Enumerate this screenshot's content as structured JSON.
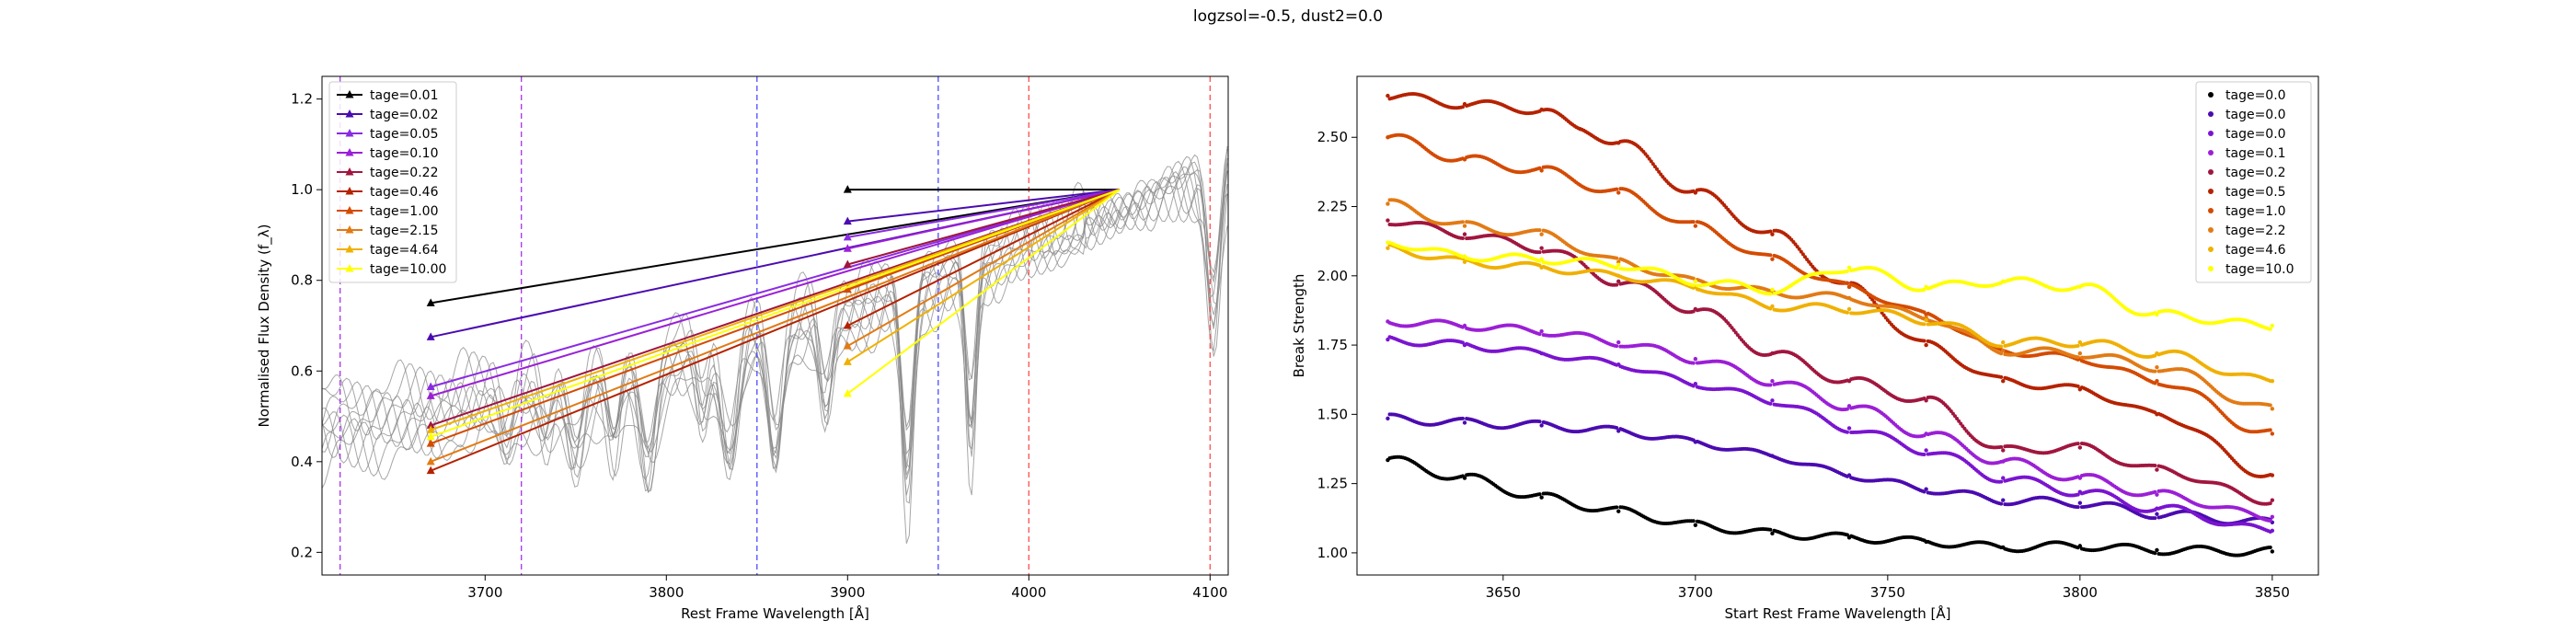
{
  "suptitle": "logzsol=-0.5, dust2=0.0",
  "chart_data": [
    {
      "type": "line",
      "xlabel": "Rest Frame Wavelength [Å]",
      "ylabel": "Normalised Flux Density (f_λ)",
      "xlim": [
        3610,
        4110
      ],
      "ylim": [
        0.15,
        1.25
      ],
      "xticks": [
        3700,
        3800,
        3900,
        4000,
        4100
      ],
      "yticks": [
        0.2,
        0.4,
        0.6,
        0.8,
        1.0,
        1.2
      ],
      "legend": "top-left",
      "grid": false,
      "vlines": [
        {
          "x": 3620,
          "color": "#a633ee"
        },
        {
          "x": 3720,
          "color": "#a633ee"
        },
        {
          "x": 3850,
          "color": "#4d4dff"
        },
        {
          "x": 3950,
          "color": "#4d4dff"
        },
        {
          "x": 4000,
          "color": "#ff4d4d"
        },
        {
          "x": 4100,
          "color": "#ff4d4d"
        }
      ],
      "anchor": {
        "x": 4050,
        "y": 1.0
      },
      "series": [
        {
          "name": "tage=0.01",
          "color": "#000000",
          "marker_x": [
            3670,
            3900
          ],
          "marker_y": [
            0.75,
            1.0
          ]
        },
        {
          "name": "tage=0.02",
          "color": "#4b0bb0",
          "marker_x": [
            3670,
            3900
          ],
          "marker_y": [
            0.675,
            0.93
          ]
        },
        {
          "name": "tage=0.05",
          "color": "#8a2be2",
          "marker_x": [
            3670,
            3900
          ],
          "marker_y": [
            0.565,
            0.895
          ]
        },
        {
          "name": "tage=0.10",
          "color": "#9b1fd6",
          "marker_x": [
            3670,
            3900
          ],
          "marker_y": [
            0.545,
            0.87
          ]
        },
        {
          "name": "tage=0.22",
          "color": "#a0163f",
          "marker_x": [
            3670,
            3900
          ],
          "marker_y": [
            0.48,
            0.835
          ]
        },
        {
          "name": "tage=0.46",
          "color": "#b52200",
          "marker_x": [
            3670,
            3900
          ],
          "marker_y": [
            0.38,
            0.7
          ]
        },
        {
          "name": "tage=1.00",
          "color": "#d44a00",
          "marker_x": [
            3670,
            3900
          ],
          "marker_y": [
            0.44,
            0.78
          ]
        },
        {
          "name": "tage=2.15",
          "color": "#e27a14",
          "marker_x": [
            3670,
            3900
          ],
          "marker_y": [
            0.4,
            0.655
          ]
        },
        {
          "name": "tage=4.64",
          "color": "#f0b000",
          "marker_x": [
            3670,
            3900
          ],
          "marker_y": [
            0.47,
            0.62
          ]
        },
        {
          "name": "tage=10.00",
          "color": "#ffff00",
          "marker_x": [
            3670,
            3900
          ],
          "marker_y": [
            0.455,
            0.55
          ]
        }
      ]
    },
    {
      "type": "scatter",
      "xlabel": "Start Rest Frame Wavelength [Å]",
      "ylabel": "Break Strength",
      "xlim": [
        3612,
        3862
      ],
      "ylim": [
        0.92,
        2.72
      ],
      "xticks": [
        3650,
        3700,
        3750,
        3800,
        3850
      ],
      "yticks": [
        1.0,
        1.25,
        1.5,
        1.75,
        2.0,
        2.25,
        2.5
      ],
      "ytick_labels": [
        "1.00",
        "1.25",
        "1.50",
        "1.75",
        "2.00",
        "2.25",
        "2.50"
      ],
      "legend": "top-right",
      "grid": false,
      "series": [
        {
          "name": "tage=0.0",
          "color": "#000000",
          "x": [
            3620,
            3640,
            3660,
            3680,
            3700,
            3720,
            3740,
            3760,
            3780,
            3800,
            3820,
            3850
          ],
          "y": [
            1.335,
            1.27,
            1.2,
            1.15,
            1.1,
            1.07,
            1.055,
            1.04,
            1.02,
            1.025,
            1.01,
            1.005
          ]
        },
        {
          "name": "tage=0.0",
          "color": "#4b0bb0",
          "x": [
            3620,
            3640,
            3660,
            3680,
            3700,
            3720,
            3740,
            3760,
            3780,
            3800,
            3820,
            3850
          ],
          "y": [
            1.485,
            1.47,
            1.46,
            1.44,
            1.4,
            1.35,
            1.28,
            1.23,
            1.19,
            1.18,
            1.14,
            1.11
          ]
        },
        {
          "name": "tage=0.0",
          "color": "#7a14d0",
          "x": [
            3620,
            3640,
            3660,
            3680,
            3700,
            3720,
            3740,
            3760,
            3780,
            3800,
            3820,
            3850
          ],
          "y": [
            1.77,
            1.75,
            1.72,
            1.68,
            1.61,
            1.55,
            1.45,
            1.37,
            1.27,
            1.22,
            1.16,
            1.08
          ]
        },
        {
          "name": "tage=0.1",
          "color": "#9b1fd6",
          "x": [
            3620,
            3640,
            3660,
            3680,
            3700,
            3720,
            3740,
            3760,
            3780,
            3800,
            3820,
            3850
          ],
          "y": [
            1.835,
            1.82,
            1.8,
            1.76,
            1.7,
            1.62,
            1.53,
            1.43,
            1.33,
            1.27,
            1.21,
            1.13
          ]
        },
        {
          "name": "tage=0.2",
          "color": "#a0163f",
          "x": [
            3620,
            3640,
            3660,
            3680,
            3700,
            3720,
            3740,
            3760,
            3780,
            3800,
            3820,
            3850
          ],
          "y": [
            2.2,
            2.15,
            2.1,
            1.98,
            1.88,
            1.72,
            1.62,
            1.55,
            1.37,
            1.38,
            1.3,
            1.19
          ]
        },
        {
          "name": "tage=0.5",
          "color": "#b52200",
          "x": [
            3620,
            3640,
            3660,
            3670,
            3680,
            3700,
            3720,
            3740,
            3760,
            3780,
            3800,
            3820,
            3850
          ],
          "y": [
            2.65,
            2.62,
            2.6,
            2.53,
            2.48,
            2.3,
            2.15,
            1.96,
            1.75,
            1.62,
            1.59,
            1.5,
            1.28
          ]
        },
        {
          "name": "tage=1.0",
          "color": "#d44a00",
          "x": [
            3620,
            3640,
            3660,
            3680,
            3700,
            3720,
            3740,
            3760,
            3780,
            3800,
            3820,
            3850
          ],
          "y": [
            2.5,
            2.42,
            2.38,
            2.3,
            2.18,
            2.06,
            1.96,
            1.86,
            1.73,
            1.7,
            1.62,
            1.43
          ]
        },
        {
          "name": "tage=2.2",
          "color": "#e27a14",
          "x": [
            3620,
            3640,
            3660,
            3680,
            3700,
            3720,
            3740,
            3760,
            3780,
            3800,
            3820,
            3850
          ],
          "y": [
            2.26,
            2.18,
            2.15,
            2.05,
            1.98,
            1.94,
            1.92,
            1.85,
            1.73,
            1.72,
            1.67,
            1.52
          ]
        },
        {
          "name": "tage=4.6",
          "color": "#f0b000",
          "x": [
            3620,
            3640,
            3660,
            3680,
            3700,
            3720,
            3740,
            3760,
            3780,
            3800,
            3820,
            3850
          ],
          "y": [
            2.1,
            2.05,
            2.03,
            2.0,
            1.96,
            1.89,
            1.88,
            1.84,
            1.76,
            1.76,
            1.72,
            1.62
          ]
        },
        {
          "name": "tage=10.0",
          "color": "#ffff00",
          "x": [
            3620,
            3640,
            3660,
            3680,
            3700,
            3720,
            3740,
            3760,
            3780,
            3800,
            3820,
            3850
          ],
          "y": [
            2.12,
            2.07,
            2.06,
            2.04,
            1.98,
            1.95,
            2.03,
            1.96,
            1.98,
            1.96,
            1.86,
            1.82
          ]
        }
      ]
    }
  ]
}
